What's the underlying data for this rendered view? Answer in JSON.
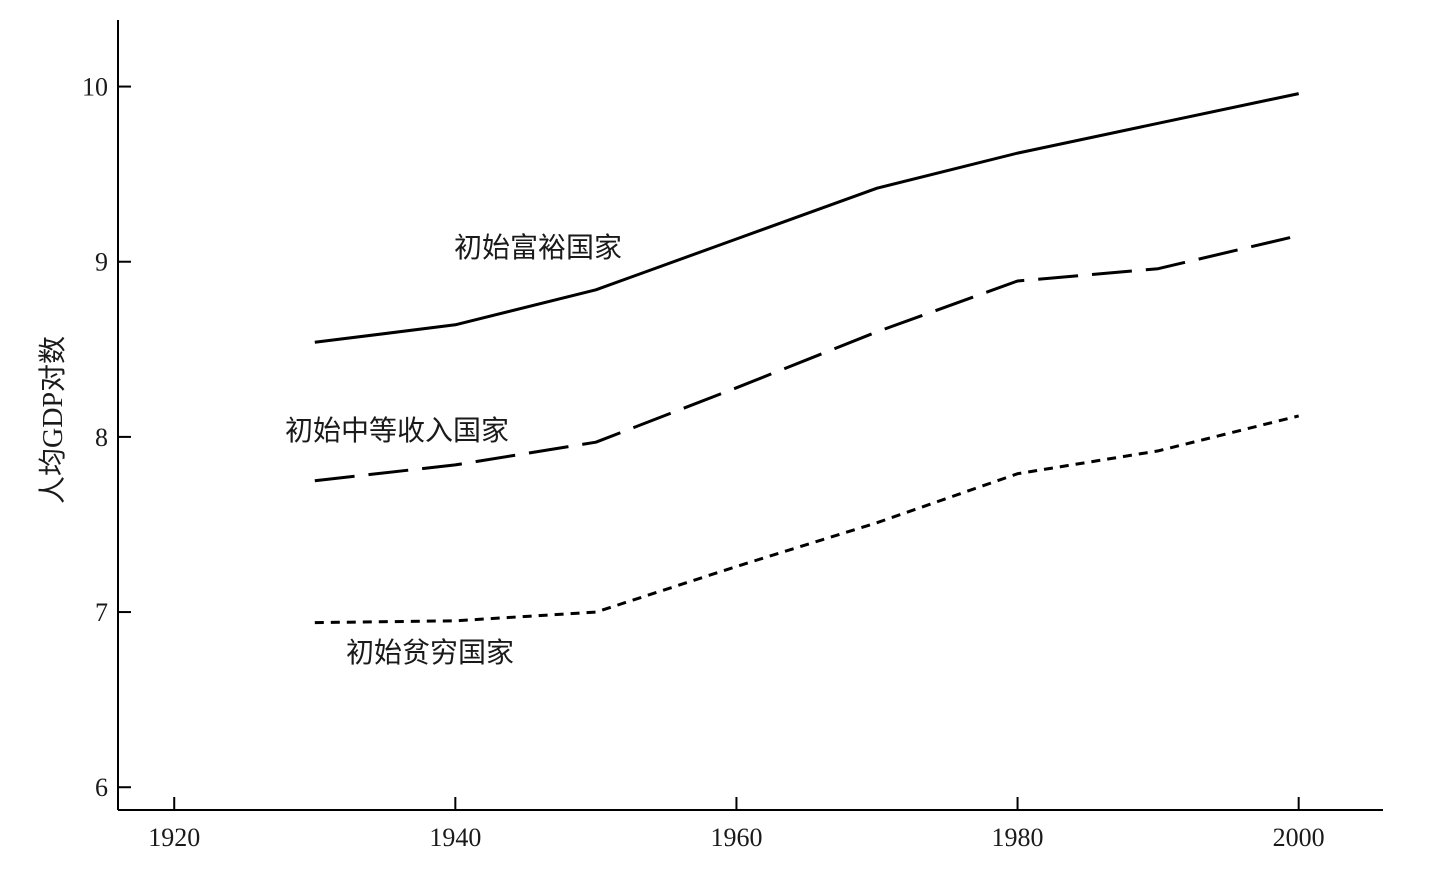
{
  "chart_data": {
    "type": "line",
    "ylabel": "人均GDP对数",
    "xlim": [
      1916,
      2006
    ],
    "ylim": [
      5.87,
      10.38
    ],
    "x_ticks": [
      1920,
      1940,
      1960,
      1980,
      2000
    ],
    "y_ticks": [
      6,
      7,
      8,
      9,
      10
    ],
    "x_tick_labels": [
      "1920",
      "1940",
      "1960",
      "1980",
      "2000"
    ],
    "y_tick_labels": [
      "6",
      "7",
      "8",
      "9",
      "10"
    ],
    "grid": false,
    "legend": "none",
    "series": [
      {
        "name": "初始富裕国家",
        "line_style": "solid",
        "color": "#000000",
        "x": [
          1930,
          1940,
          1950,
          1960,
          1970,
          1980,
          1990,
          2000
        ],
        "y": [
          8.54,
          8.64,
          8.84,
          9.13,
          9.42,
          9.62,
          9.79,
          9.96
        ]
      },
      {
        "name": "初始中等收入国家",
        "line_style": "long-dash",
        "color": "#000000",
        "x": [
          1930,
          1940,
          1950,
          1960,
          1970,
          1980,
          1990,
          2000
        ],
        "y": [
          7.75,
          7.84,
          7.97,
          8.28,
          8.6,
          8.89,
          8.96,
          9.15
        ]
      },
      {
        "name": "初始贫穷国家",
        "line_style": "short-dash",
        "color": "#000000",
        "x": [
          1930,
          1940,
          1950,
          1960,
          1970,
          1980,
          1990,
          2000
        ],
        "y": [
          6.94,
          6.95,
          7.0,
          7.26,
          7.51,
          7.79,
          7.92,
          8.12
        ]
      }
    ]
  }
}
